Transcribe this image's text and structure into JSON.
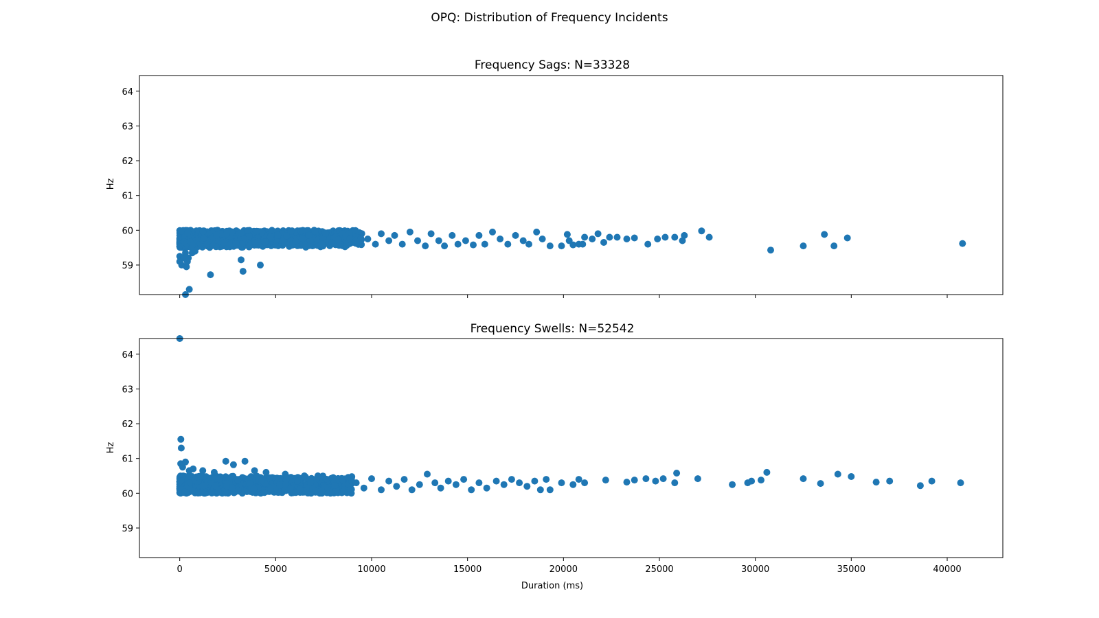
{
  "figure": {
    "title": "OPQ: Distribution of Frequency Incidents",
    "marker_color": "#1f77b4"
  },
  "chart_data": [
    {
      "type": "scatter",
      "title": "Frequency Sags: N=33328",
      "xlabel": "",
      "ylabel": "Hz",
      "xlim": [
        -2100,
        42900
      ],
      "ylim": [
        58.15,
        64.45
      ],
      "xticks": [
        0,
        5000,
        10000,
        15000,
        20000,
        25000,
        30000,
        35000,
        40000
      ],
      "xticklabels": [
        "",
        "",
        "",
        "",
        "",
        "",
        "",
        "",
        ""
      ],
      "yticks": [
        59,
        60,
        61,
        62,
        63,
        64
      ],
      "yticklabels": [
        "59",
        "60",
        "61",
        "62",
        "63",
        "64"
      ],
      "grid": false,
      "band": {
        "x_end": 9500,
        "y_low": 59.5,
        "y_high": 60.0,
        "x_end_low": 59.65
      },
      "points": [
        [
          0,
          59.25
        ],
        [
          0,
          59.1
        ],
        [
          100,
          59.0
        ],
        [
          200,
          59.2
        ],
        [
          300,
          59.35
        ],
        [
          350,
          58.95
        ],
        [
          400,
          59.1
        ],
        [
          450,
          59.2
        ],
        [
          500,
          58.3
        ],
        [
          300,
          58.15
        ],
        [
          650,
          59.35
        ],
        [
          800,
          59.4
        ],
        [
          1600,
          58.72
        ],
        [
          3200,
          59.15
        ],
        [
          3300,
          58.82
        ],
        [
          4200,
          59.0
        ],
        [
          9800,
          59.75
        ],
        [
          10200,
          59.6
        ],
        [
          10500,
          59.9
        ],
        [
          10900,
          59.7
        ],
        [
          11200,
          59.85
        ],
        [
          11600,
          59.6
        ],
        [
          12000,
          59.95
        ],
        [
          12400,
          59.7
        ],
        [
          12800,
          59.55
        ],
        [
          13100,
          59.9
        ],
        [
          13500,
          59.7
        ],
        [
          13800,
          59.55
        ],
        [
          14200,
          59.85
        ],
        [
          14500,
          59.6
        ],
        [
          14900,
          59.7
        ],
        [
          15300,
          59.58
        ],
        [
          15600,
          59.85
        ],
        [
          15900,
          59.6
        ],
        [
          16300,
          59.95
        ],
        [
          16700,
          59.75
        ],
        [
          17100,
          59.6
        ],
        [
          17500,
          59.85
        ],
        [
          17900,
          59.7
        ],
        [
          18200,
          59.6
        ],
        [
          18600,
          59.95
        ],
        [
          18900,
          59.75
        ],
        [
          19300,
          59.55
        ],
        [
          19900,
          59.55
        ],
        [
          20200,
          59.88
        ],
        [
          20300,
          59.7
        ],
        [
          20500,
          59.58
        ],
        [
          20800,
          59.6
        ],
        [
          21000,
          59.6
        ],
        [
          21100,
          59.8
        ],
        [
          21500,
          59.75
        ],
        [
          21800,
          59.9
        ],
        [
          22100,
          59.65
        ],
        [
          22400,
          59.8
        ],
        [
          22800,
          59.8
        ],
        [
          23300,
          59.75
        ],
        [
          23700,
          59.78
        ],
        [
          24400,
          59.6
        ],
        [
          24900,
          59.75
        ],
        [
          25300,
          59.8
        ],
        [
          25800,
          59.8
        ],
        [
          26300,
          59.85
        ],
        [
          26200,
          59.7
        ],
        [
          27200,
          59.98
        ],
        [
          27600,
          59.8
        ],
        [
          30800,
          59.43
        ],
        [
          32500,
          59.55
        ],
        [
          33600,
          59.88
        ],
        [
          34100,
          59.55
        ],
        [
          34800,
          59.78
        ],
        [
          40800,
          59.62
        ]
      ]
    },
    {
      "type": "scatter",
      "title": "Frequency Swells: N=52542",
      "xlabel": "Duration (ms)",
      "ylabel": "Hz",
      "xlim": [
        -2100,
        42900
      ],
      "ylim": [
        58.15,
        64.45
      ],
      "xticks": [
        0,
        5000,
        10000,
        15000,
        20000,
        25000,
        30000,
        35000,
        40000
      ],
      "xticklabels": [
        "0",
        "5000",
        "10000",
        "15000",
        "20000",
        "25000",
        "30000",
        "35000",
        "40000"
      ],
      "yticks": [
        59,
        60,
        61,
        62,
        63,
        64
      ],
      "yticklabels": [
        "59",
        "60",
        "61",
        "62",
        "63",
        "64"
      ],
      "grid": false,
      "band": {
        "x_end": 9000,
        "y_low": 60.0,
        "y_high": 60.5,
        "x_end_high": 60.35
      },
      "points": [
        [
          0,
          64.45
        ],
        [
          60,
          61.55
        ],
        [
          80,
          61.3
        ],
        [
          50,
          60.85
        ],
        [
          150,
          60.75
        ],
        [
          300,
          60.9
        ],
        [
          500,
          60.65
        ],
        [
          700,
          60.7
        ],
        [
          1200,
          60.65
        ],
        [
          1800,
          60.6
        ],
        [
          2400,
          60.92
        ],
        [
          2800,
          60.82
        ],
        [
          3400,
          60.92
        ],
        [
          3900,
          60.65
        ],
        [
          4500,
          60.6
        ],
        [
          5500,
          60.55
        ],
        [
          6500,
          60.5
        ],
        [
          7200,
          60.5
        ],
        [
          8000,
          60.45
        ],
        [
          9200,
          60.3
        ],
        [
          9600,
          60.15
        ],
        [
          10000,
          60.42
        ],
        [
          10500,
          60.1
        ],
        [
          10900,
          60.35
        ],
        [
          11300,
          60.2
        ],
        [
          11700,
          60.4
        ],
        [
          12100,
          60.1
        ],
        [
          12500,
          60.25
        ],
        [
          12900,
          60.55
        ],
        [
          13300,
          60.3
        ],
        [
          13600,
          60.15
        ],
        [
          14000,
          60.35
        ],
        [
          14400,
          60.25
        ],
        [
          14800,
          60.4
        ],
        [
          15200,
          60.1
        ],
        [
          15600,
          60.3
        ],
        [
          16000,
          60.15
        ],
        [
          16500,
          60.35
        ],
        [
          16900,
          60.25
        ],
        [
          17300,
          60.4
        ],
        [
          17700,
          60.3
        ],
        [
          18100,
          60.2
        ],
        [
          18500,
          60.35
        ],
        [
          18800,
          60.1
        ],
        [
          19100,
          60.4
        ],
        [
          19300,
          60.1
        ],
        [
          19900,
          60.3
        ],
        [
          20500,
          60.25
        ],
        [
          20800,
          60.4
        ],
        [
          21100,
          60.3
        ],
        [
          22200,
          60.38
        ],
        [
          23300,
          60.32
        ],
        [
          23700,
          60.38
        ],
        [
          24300,
          60.42
        ],
        [
          24800,
          60.35
        ],
        [
          25200,
          60.42
        ],
        [
          25800,
          60.3
        ],
        [
          25900,
          60.58
        ],
        [
          27000,
          60.42
        ],
        [
          28800,
          60.25
        ],
        [
          29600,
          60.3
        ],
        [
          29800,
          60.35
        ],
        [
          30300,
          60.38
        ],
        [
          30600,
          60.6
        ],
        [
          32500,
          60.42
        ],
        [
          33400,
          60.28
        ],
        [
          34300,
          60.55
        ],
        [
          35000,
          60.48
        ],
        [
          36300,
          60.32
        ],
        [
          37000,
          60.35
        ],
        [
          38600,
          60.22
        ],
        [
          39200,
          60.35
        ],
        [
          40700,
          60.3
        ]
      ]
    }
  ]
}
